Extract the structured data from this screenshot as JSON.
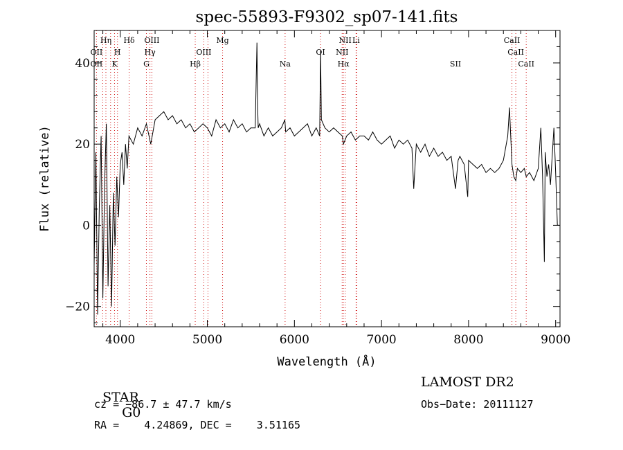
{
  "chart_data": {
    "type": "line",
    "title": "spec-55893-F9302_sp07-141.fits",
    "xlabel": "Wavelength (Å)",
    "ylabel": "Flux (relative)",
    "xlim": [
      3700,
      9050
    ],
    "ylim": [
      -25,
      48
    ],
    "x_ticks": [
      4000,
      5000,
      6000,
      7000,
      8000,
      9000
    ],
    "y_ticks": [
      -20,
      0,
      20,
      40
    ],
    "x_tick_labels": [
      "4000",
      "5000",
      "6000",
      "7000",
      "8000",
      "9000"
    ],
    "y_tick_labels": [
      "−20",
      "0",
      "20",
      "40"
    ],
    "grid": false,
    "series": [
      {
        "x": [
          3700,
          3720,
          3740,
          3760,
          3780,
          3800,
          3820,
          3840,
          3860,
          3880,
          3900,
          3920,
          3940,
          3960,
          3980,
          4000,
          4020,
          4040,
          4060,
          4080,
          4100,
          4150,
          4200,
          4250,
          4300,
          4350,
          4400,
          4450,
          4500,
          4550,
          4600,
          4650,
          4700,
          4750,
          4800,
          4850,
          4900,
          4950,
          5000,
          5050,
          5100,
          5150,
          5200,
          5250,
          5300,
          5350,
          5400,
          5450,
          5500,
          5550,
          5570,
          5577,
          5584,
          5600,
          5650,
          5700,
          5750,
          5800,
          5850,
          5890,
          5900,
          5950,
          6000,
          6050,
          6100,
          6150,
          6200,
          6250,
          6290,
          6300,
          6310,
          6350,
          6400,
          6450,
          6500,
          6550,
          6563,
          6600,
          6650,
          6700,
          6750,
          6800,
          6850,
          6900,
          6950,
          7000,
          7050,
          7100,
          7150,
          7200,
          7250,
          7300,
          7350,
          7370,
          7400,
          7450,
          7500,
          7550,
          7600,
          7650,
          7700,
          7750,
          7800,
          7850,
          7880,
          7900,
          7950,
          7990,
          8000,
          8050,
          8100,
          8150,
          8200,
          8250,
          8300,
          8350,
          8400,
          8450,
          8470,
          8498,
          8520,
          8542,
          8560,
          8600,
          8640,
          8662,
          8700,
          8750,
          8800,
          8830,
          8850,
          8870,
          8880,
          8900,
          8920,
          8940,
          8960,
          8980,
          9000,
          9020,
          9040
        ],
        "y": [
          -10,
          18,
          -22,
          5,
          22,
          -18,
          10,
          25,
          -15,
          5,
          -20,
          8,
          -5,
          12,
          2,
          15,
          18,
          10,
          20,
          14,
          22,
          20,
          24,
          22,
          25,
          20,
          26,
          27,
          28,
          26,
          27,
          25,
          26,
          24,
          25,
          23,
          24,
          25,
          24,
          22,
          26,
          24,
          25,
          23,
          26,
          24,
          25,
          23,
          24,
          24,
          45,
          30,
          24,
          25,
          22,
          24,
          22,
          23,
          24,
          26,
          23,
          24,
          22,
          23,
          24,
          25,
          22,
          24,
          22,
          43,
          26,
          24,
          23,
          24,
          23,
          22,
          20,
          22,
          23,
          21,
          22,
          22,
          21,
          23,
          21,
          20,
          21,
          22,
          19,
          21,
          20,
          21,
          19,
          9,
          20,
          18,
          20,
          17,
          19,
          17,
          18,
          16,
          17,
          9,
          16,
          17,
          15,
          7,
          16,
          15,
          14,
          15,
          13,
          14,
          13,
          14,
          16,
          22,
          29,
          15,
          12,
          11,
          14,
          13,
          14,
          12,
          13,
          11,
          14,
          24,
          12,
          -9,
          18,
          12,
          15,
          10,
          17,
          24,
          13,
          0,
          0
        ]
      }
    ],
    "reference_lines": {
      "wavelengths": [
        3727,
        3798,
        3835,
        3889,
        3934,
        3968,
        4102,
        4300,
        4341,
        4363,
        4861,
        4959,
        5007,
        5175,
        5893,
        6300,
        6548,
        6563,
        6583,
        6708,
        6716,
        8498,
        8542,
        8662
      ],
      "labels": [
        {
          "text": "Hη",
          "x": 3835,
          "row": 1
        },
        {
          "text": "Hδ",
          "x": 4102,
          "row": 1
        },
        {
          "text": "OIII",
          "x": 4363,
          "row": 1
        },
        {
          "text": "Mg",
          "x": 5175,
          "row": 1
        },
        {
          "text": "NII",
          "x": 6583,
          "row": 1
        },
        {
          "text": "Li",
          "x": 6708,
          "row": 1
        },
        {
          "text": "CaII",
          "x": 8498,
          "row": 1
        },
        {
          "text": "OII",
          "x": 3727,
          "row": 2
        },
        {
          "text": "H",
          "x": 3968,
          "row": 2
        },
        {
          "text": "Hγ",
          "x": 4341,
          "row": 2
        },
        {
          "text": "OIII",
          "x": 4959,
          "row": 2
        },
        {
          "text": "OI",
          "x": 6300,
          "row": 2
        },
        {
          "text": "NII",
          "x": 6548,
          "row": 2
        },
        {
          "text": "CaII",
          "x": 8542,
          "row": 2
        },
        {
          "text": "OII",
          "x": 3727,
          "row": 3
        },
        {
          "text": "K",
          "x": 3934,
          "row": 3
        },
        {
          "text": "G",
          "x": 4300,
          "row": 3
        },
        {
          "text": "Hβ",
          "x": 4861,
          "row": 3
        },
        {
          "text": "Na",
          "x": 5893,
          "row": 3
        },
        {
          "text": "Hα",
          "x": 6563,
          "row": 3
        },
        {
          "text": "SII",
          "x": 7850,
          "row": 3
        },
        {
          "text": "CaII",
          "x": 8662,
          "row": 3
        }
      ]
    }
  },
  "info": {
    "class_label": "STAR",
    "subclass": "G0",
    "survey": "LAMOST DR2",
    "redshift_line": "cz = −86.7 ± 47.7 km/s",
    "obs_date_line": "Obs−Date: 20111127",
    "coords_line": "RA =    4.24869, DEC =    3.51165"
  },
  "colors": {
    "spectrum": "#000000",
    "reference_line": "#d01010",
    "axes": "#000000"
  }
}
